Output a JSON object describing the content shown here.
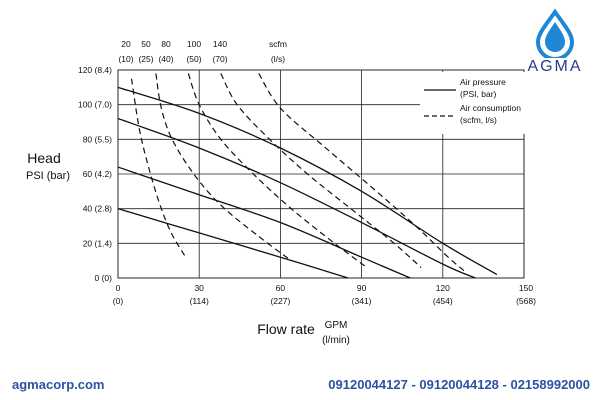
{
  "brand": {
    "logo_text": "AGMA",
    "website": "agmacorp.com",
    "phones": "09120044127 - 09120044128 - 02158992000",
    "colors": {
      "brand_blue": "#2f51a3",
      "drop_blue": "#1e88d6"
    }
  },
  "chart_data": {
    "type": "line",
    "ylabel": "Head",
    "ylabel_unit": "PSI (bar)",
    "xlabel": "Flow rate",
    "xlabel_unit": "GPM",
    "xlabel_unit2": "(l/min)",
    "xlim": [
      0,
      150
    ],
    "ylim": [
      0,
      120
    ],
    "grid": true,
    "x_ticks": [
      {
        "value": 0,
        "label": "0",
        "sub": "(0)"
      },
      {
        "value": 30,
        "label": "30",
        "sub": "(114)"
      },
      {
        "value": 60,
        "label": "60",
        "sub": "(227)"
      },
      {
        "value": 90,
        "label": "90",
        "sub": "(341)"
      },
      {
        "value": 120,
        "label": "120",
        "sub": "(454)"
      },
      {
        "value": 150,
        "label": "",
        "sub": ""
      }
    ],
    "x_end_label": {
      "label": "150",
      "sub": "(568)"
    },
    "y_ticks": [
      {
        "value": 0,
        "label": "0 (0)"
      },
      {
        "value": 20,
        "label": "20 (1.4)"
      },
      {
        "value": 40,
        "label": "40 (2.8)"
      },
      {
        "value": 60,
        "label": "60 (4.2)"
      },
      {
        "value": 80,
        "label": "80 (5.5)"
      },
      {
        "value": 100,
        "label": "100 (7.0)"
      },
      {
        "value": 120,
        "label": "120 (8.4)"
      }
    ],
    "air_scale": {
      "unit": "scfm",
      "unit_sub": "(l/s)",
      "labels": [
        {
          "top": "20",
          "bottom": "(10)"
        },
        {
          "top": "50",
          "bottom": "(25)"
        },
        {
          "top": "80",
          "bottom": "(40)"
        },
        {
          "top": "100",
          "bottom": "(50)"
        },
        {
          "top": "140",
          "bottom": "(70)"
        }
      ]
    },
    "legend": {
      "placement": "top-right",
      "entries": [
        {
          "style": "solid",
          "label1": "Air pressure",
          "label2": "(PSI, bar)"
        },
        {
          "style": "dashed",
          "label1": "Air consumption",
          "label2": "(scfm, l/s)"
        }
      ]
    },
    "pressure_curves": [
      {
        "x": [
          0,
          30,
          60,
          90,
          120,
          140
        ],
        "y": [
          110,
          95,
          75,
          50,
          20,
          2
        ]
      },
      {
        "x": [
          0,
          30,
          60,
          90,
          120,
          132
        ],
        "y": [
          92,
          75,
          55,
          32,
          8,
          0
        ]
      },
      {
        "x": [
          0,
          30,
          60,
          90,
          108
        ],
        "y": [
          64,
          48,
          32,
          12,
          0
        ]
      },
      {
        "x": [
          0,
          30,
          60,
          85
        ],
        "y": [
          40,
          26,
          12,
          0
        ]
      }
    ],
    "air_curves": [
      {
        "x": [
          5,
          8,
          12,
          16,
          20,
          25
        ],
        "y": [
          115,
          85,
          60,
          40,
          25,
          12
        ]
      },
      {
        "x": [
          14,
          16,
          20,
          28,
          38,
          52,
          64
        ],
        "y": [
          118,
          98,
          80,
          60,
          42,
          24,
          10
        ]
      },
      {
        "x": [
          26,
          30,
          38,
          50,
          64,
          80,
          92
        ],
        "y": [
          118,
          100,
          80,
          60,
          40,
          20,
          6
        ]
      },
      {
        "x": [
          38,
          44,
          56,
          70,
          86,
          102,
          112
        ],
        "y": [
          118,
          100,
          80,
          60,
          40,
          20,
          6
        ]
      },
      {
        "x": [
          52,
          60,
          76,
          94,
          110,
          122,
          128
        ],
        "y": [
          118,
          98,
          76,
          52,
          30,
          12,
          4
        ]
      }
    ]
  }
}
